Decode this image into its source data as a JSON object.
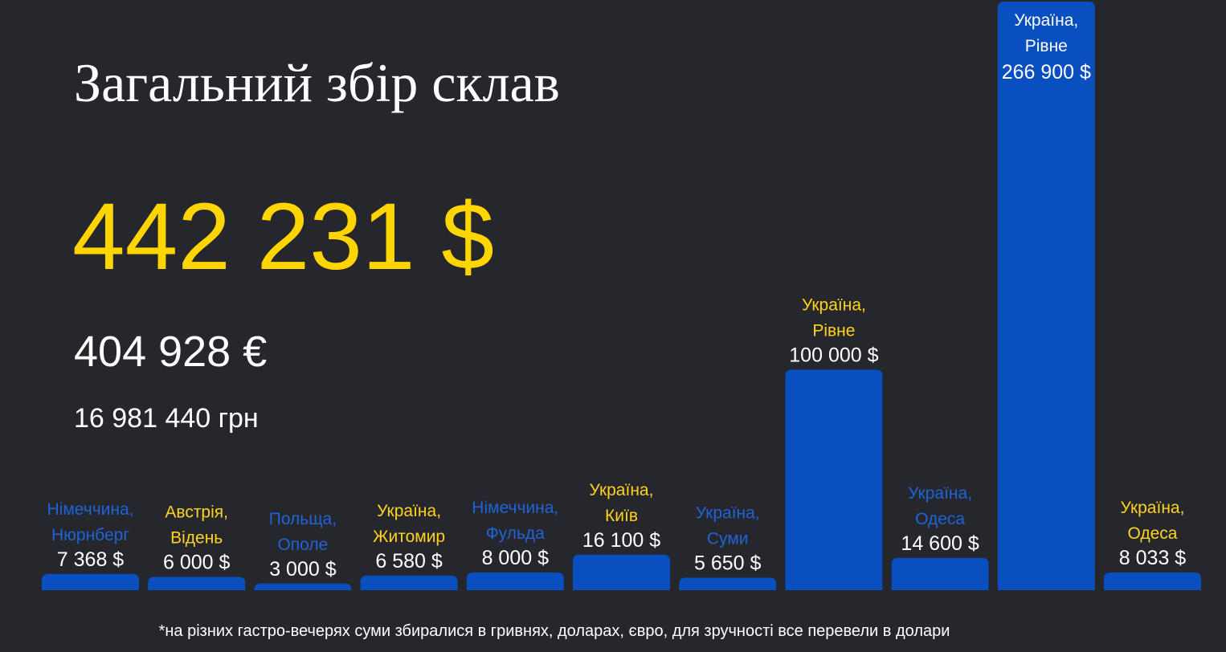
{
  "chart_data": {
    "type": "bar",
    "title": "Загальний збір склав",
    "annotations": [
      "442 231 $",
      "404 928 €",
      "16 981 440 грн"
    ],
    "footnote": "*на різних гастро-вечерях  суми збиралися в гривнях, доларах, євро, для зручності все перевели в долари",
    "categories": [
      [
        "Німеччина,",
        "Нюрнберг"
      ],
      [
        "Австрія,",
        "Відень"
      ],
      [
        "Польща,",
        "Ополе"
      ],
      [
        "Україна,",
        "Житомир"
      ],
      [
        "Німеччина,",
        "Фульда"
      ],
      [
        "Україна,",
        "Київ"
      ],
      [
        "Україна,",
        "Суми"
      ],
      [
        "Україна,",
        "Рівне"
      ],
      [
        "Україна,",
        "Одеса"
      ],
      [
        "Україна,",
        "Рівне"
      ],
      [
        "Україна,",
        "Одеса"
      ]
    ],
    "values": [
      7368,
      6000,
      3000,
      6580,
      8000,
      16100,
      5650,
      100000,
      14600,
      266900,
      8033
    ],
    "value_labels": [
      "7 368 $",
      "6 000 $",
      "3 000 $",
      "6 580 $",
      "8 000 $",
      "16 100 $",
      "5 650 $",
      "100 000 $",
      "14 600 $",
      "266 900 $",
      "8 033 $"
    ],
    "label_colors": [
      "#1f63d6",
      "#ffd21f",
      "#1f63d6",
      "#ffd21f",
      "#1f63d6",
      "#ffd21f",
      "#1f63d6",
      "#ffd21f",
      "#1f63d6",
      "#ffffff",
      "#ffd21f"
    ],
    "color": "#0a4fc0",
    "ylim": [
      0,
      266900
    ]
  }
}
